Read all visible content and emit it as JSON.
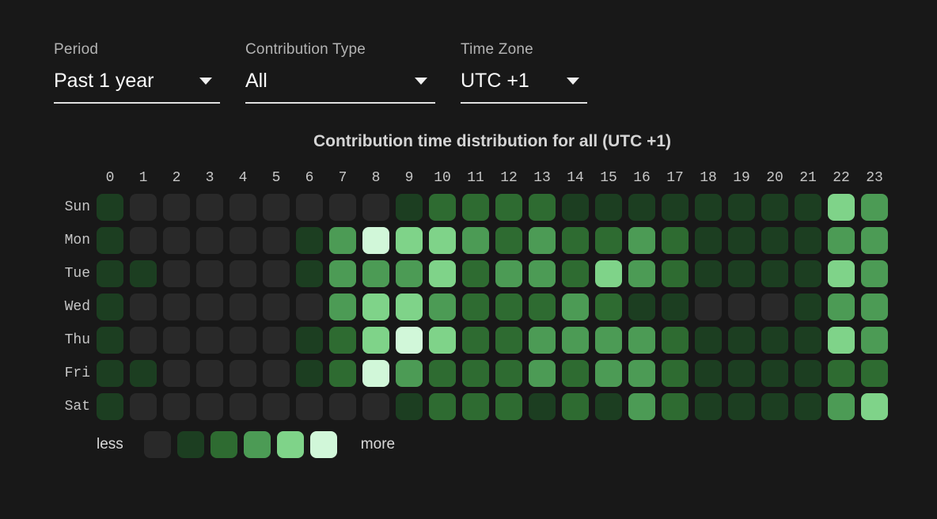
{
  "filters": {
    "period": {
      "label": "Period",
      "value": "Past 1 year"
    },
    "contribution_type": {
      "label": "Contribution Type",
      "value": "All"
    },
    "time_zone": {
      "label": "Time Zone",
      "value": "UTC +1"
    }
  },
  "icons": {
    "dropdown_chevron": "chevron-down"
  },
  "chart_data": {
    "type": "heatmap",
    "title": "Contribution time distribution for all (UTC +1)",
    "x_labels": [
      "0",
      "1",
      "2",
      "3",
      "4",
      "5",
      "6",
      "7",
      "8",
      "9",
      "10",
      "11",
      "12",
      "13",
      "14",
      "15",
      "16",
      "17",
      "18",
      "19",
      "20",
      "21",
      "22",
      "23"
    ],
    "y_labels": [
      "Sun",
      "Mon",
      "Tue",
      "Wed",
      "Thu",
      "Fri",
      "Sat"
    ],
    "levels": [
      [
        1,
        0,
        0,
        0,
        0,
        0,
        0,
        0,
        0,
        1,
        2,
        2,
        2,
        2,
        1,
        1,
        1,
        1,
        1,
        1,
        1,
        1,
        4,
        3
      ],
      [
        1,
        0,
        0,
        0,
        0,
        0,
        1,
        3,
        5,
        4,
        4,
        3,
        2,
        3,
        2,
        2,
        3,
        2,
        1,
        1,
        1,
        1,
        3,
        3
      ],
      [
        1,
        1,
        0,
        0,
        0,
        0,
        1,
        3,
        3,
        3,
        4,
        2,
        3,
        3,
        2,
        4,
        3,
        2,
        1,
        1,
        1,
        1,
        4,
        3
      ],
      [
        1,
        0,
        0,
        0,
        0,
        0,
        0,
        3,
        4,
        4,
        3,
        2,
        2,
        2,
        3,
        2,
        1,
        1,
        0,
        0,
        0,
        1,
        3,
        3
      ],
      [
        1,
        0,
        0,
        0,
        0,
        0,
        1,
        2,
        4,
        5,
        4,
        2,
        2,
        3,
        3,
        3,
        3,
        2,
        1,
        1,
        1,
        1,
        4,
        3
      ],
      [
        1,
        1,
        0,
        0,
        0,
        0,
        1,
        2,
        5,
        3,
        2,
        2,
        2,
        3,
        2,
        3,
        3,
        2,
        1,
        1,
        1,
        1,
        2,
        2
      ],
      [
        1,
        0,
        0,
        0,
        0,
        0,
        0,
        0,
        0,
        1,
        2,
        2,
        2,
        1,
        2,
        1,
        3,
        2,
        1,
        1,
        1,
        1,
        3,
        4
      ]
    ],
    "level_colors": [
      "#292929",
      "#1c3e21",
      "#2e6b31",
      "#4c9b55",
      "#7fd389",
      "#d1f7d9"
    ],
    "legend": {
      "less": "less",
      "more": "more"
    },
    "legend_position": "bottom-left",
    "grid": false,
    "background_color": "#181818"
  }
}
